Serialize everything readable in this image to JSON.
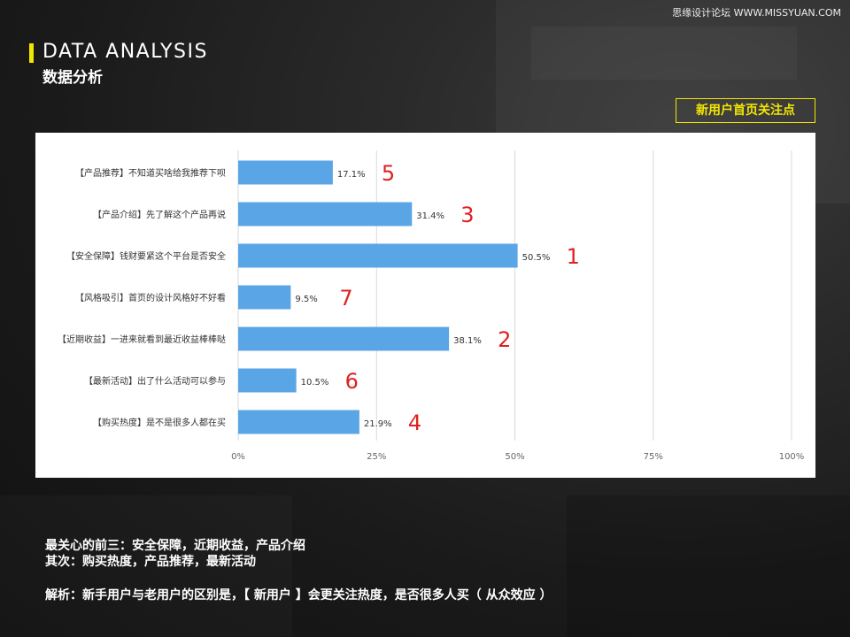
{
  "watermark": "思缘设计论坛 WWW.MISSYUAN.COM",
  "header": {
    "title_en": "DATA ANALYSIS",
    "title_cn": "数据分析"
  },
  "tag": "新用户首页关注点",
  "chart_data": {
    "type": "bar",
    "orientation": "horizontal",
    "categories": [
      "【产品推荐】不知道买啥给我推荐下呗",
      "【产品介绍】先了解这个产品再说",
      "【安全保障】钱财要紧这个平台是否安全",
      "【风格吸引】首页的设计风格好不好看",
      "【近期收益】一进来就看到最近收益棒棒哒",
      "【最新活动】出了什么活动可以参与",
      "【购买热度】是不是很多人都在买"
    ],
    "values": [
      17.1,
      31.4,
      50.5,
      9.5,
      38.1,
      10.5,
      21.9
    ],
    "value_labels": [
      "17.1%",
      "31.4%",
      "50.5%",
      "9.5%",
      "38.1%",
      "10.5%",
      "21.9%"
    ],
    "ranks": [
      "5",
      "3",
      "1",
      "7",
      "2",
      "6",
      "4"
    ],
    "xlim": [
      0,
      100
    ],
    "xticks": [
      "0%",
      "25%",
      "50%",
      "75%",
      "100%"
    ],
    "grid": "vertical",
    "bar_color": "#5aa5e6",
    "rank_color": "#e02020",
    "title": "",
    "xlabel": "",
    "ylabel": ""
  },
  "summary": {
    "line1": "最关心的前三：安全保障，近期收益，产品介绍",
    "line2": "其次：购买热度，产品推荐，最新活动",
    "line3": "解析：新手用户与老用户的区别是，【 新用户 】会更关注热度，是否很多人买（ 从众效应 ）"
  }
}
